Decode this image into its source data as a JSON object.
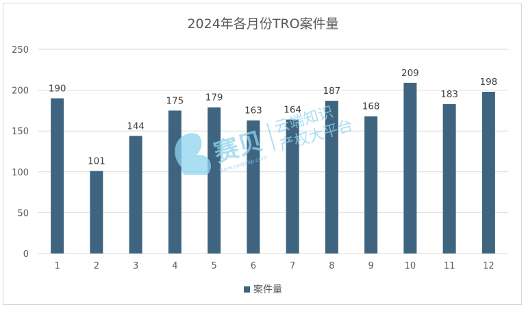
{
  "chart_data": {
    "type": "bar",
    "title": "2024年各月份TRO案件量",
    "categories": [
      "1",
      "2",
      "3",
      "4",
      "5",
      "6",
      "7",
      "8",
      "9",
      "10",
      "11",
      "12"
    ],
    "series": [
      {
        "name": "案件量",
        "values": [
          190,
          101,
          144,
          175,
          179,
          163,
          164,
          187,
          168,
          209,
          183,
          198
        ],
        "color": "#3e6480"
      }
    ],
    "y_ticks": [
      "0",
      "50",
      "100",
      "150",
      "200",
      "250"
    ],
    "ylim": [
      0,
      250
    ],
    "xlabel": "",
    "ylabel": "",
    "grid": true,
    "legend_position": "bottom"
  },
  "watermark": {
    "brand": "赛贝",
    "line1": "云端知识",
    "line2": "产权大平台",
    "url": "www.saibeiip.com"
  }
}
